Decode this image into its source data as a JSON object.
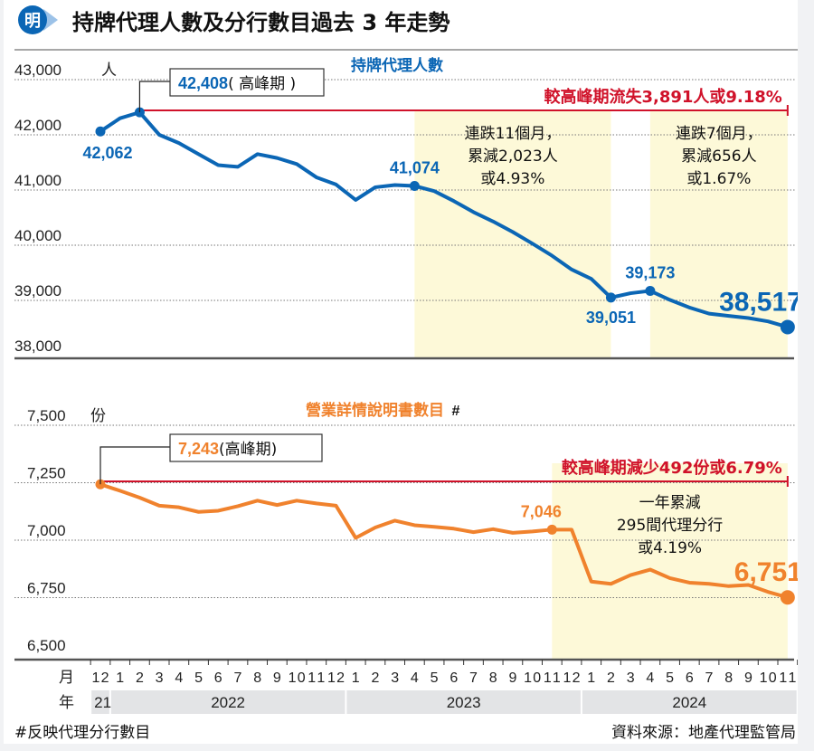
{
  "header": {
    "logo_char": "明",
    "title": "持牌代理人數及分行數目過去 3 年走勢"
  },
  "colors": {
    "agents": "#0b66b5",
    "branches": "#f0822d",
    "peak_line": "#d0122a",
    "highlight": "#fdf9d8",
    "year_band": "#e3e4e6"
  },
  "chart_data": [
    {
      "type": "line",
      "title": "持牌代理人數",
      "unit": "人",
      "ylim": [
        38000,
        43000
      ],
      "yticks": [
        38000,
        39000,
        40000,
        41000,
        42000,
        43000
      ],
      "ytick_labels": [
        "38,000",
        "39,000",
        "40,000",
        "41,000",
        "42,000",
        "43,000"
      ],
      "grid": true,
      "x": [
        "2021-12",
        "2022-01",
        "2022-02",
        "2022-03",
        "2022-04",
        "2022-05",
        "2022-06",
        "2022-07",
        "2022-08",
        "2022-09",
        "2022-10",
        "2022-11",
        "2022-12",
        "2023-01",
        "2023-02",
        "2023-03",
        "2023-04",
        "2023-05",
        "2023-06",
        "2023-07",
        "2023-08",
        "2023-09",
        "2023-10",
        "2023-11",
        "2023-12",
        "2024-01",
        "2024-02",
        "2024-03",
        "2024-04",
        "2024-05",
        "2024-06",
        "2024-07",
        "2024-08",
        "2024-09",
        "2024-10",
        "2024-11"
      ],
      "series": [
        {
          "name": "持牌代理人數",
          "values": [
            42062,
            42300,
            42408,
            42000,
            41850,
            41650,
            41450,
            41420,
            41650,
            41580,
            41470,
            41230,
            41100,
            40820,
            41050,
            41090,
            41074,
            40980,
            40800,
            40600,
            40430,
            40240,
            40030,
            39810,
            39560,
            39390,
            39051,
            39130,
            39173,
            39010,
            38870,
            38760,
            38720,
            38680,
            38620,
            38517
          ]
        }
      ],
      "labeled_points": [
        {
          "index": 0,
          "label": "42,062",
          "position": "below"
        },
        {
          "index": 2,
          "label": "42,408",
          "callout_suffix": "( 高峰期 )",
          "position": "callout"
        },
        {
          "index": 16,
          "label": "41,074",
          "position": "above"
        },
        {
          "index": 26,
          "label": "39,051",
          "position": "below"
        },
        {
          "index": 28,
          "label": "39,173",
          "position": "above"
        },
        {
          "index": 35,
          "label": "38,517",
          "position": "above-large"
        }
      ],
      "peak_annotation": "較高峰期流失3,891人或9.18%",
      "highlights": [
        {
          "from_index": 16,
          "to_index": 26,
          "lines": [
            "連跌11個月，",
            "累減2,023人",
            "或4.93%"
          ]
        },
        {
          "from_index": 28,
          "to_index": 35,
          "lines": [
            "連跌7個月，",
            "累減656人",
            "或1.67%"
          ]
        }
      ]
    },
    {
      "type": "line",
      "title": "營業詳情說明書數目",
      "title_mark": "#",
      "unit": "份",
      "ylim": [
        6500,
        7500
      ],
      "yticks": [
        6500,
        6750,
        7000,
        7250,
        7500
      ],
      "ytick_labels": [
        "6,500",
        "6,750",
        "7,000",
        "7,250",
        "7,500"
      ],
      "grid": true,
      "x": [
        "2021-12",
        "2022-01",
        "2022-02",
        "2022-03",
        "2022-04",
        "2022-05",
        "2022-06",
        "2022-07",
        "2022-08",
        "2022-09",
        "2022-10",
        "2022-11",
        "2022-12",
        "2023-01",
        "2023-02",
        "2023-03",
        "2023-04",
        "2023-05",
        "2023-06",
        "2023-07",
        "2023-08",
        "2023-09",
        "2023-10",
        "2023-11",
        "2023-12",
        "2024-01",
        "2024-02",
        "2024-03",
        "2024-04",
        "2024-05",
        "2024-06",
        "2024-07",
        "2024-08",
        "2024-09",
        "2024-10",
        "2024-11"
      ],
      "series": [
        {
          "name": "營業詳情說明書數目",
          "values": [
            7243,
            7215,
            7185,
            7150,
            7143,
            7123,
            7128,
            7148,
            7172,
            7153,
            7172,
            7160,
            7150,
            7010,
            7055,
            7085,
            7065,
            7058,
            7050,
            7035,
            7048,
            7032,
            7038,
            7046,
            7046,
            6820,
            6810,
            6848,
            6872,
            6835,
            6815,
            6810,
            6800,
            6805,
            6775,
            6751
          ]
        }
      ],
      "labeled_points": [
        {
          "index": 0,
          "label": "7,243",
          "callout_suffix": "(高峰期)",
          "position": "callout"
        },
        {
          "index": 23,
          "label": "7,046",
          "position": "above"
        },
        {
          "index": 35,
          "label": "6,751",
          "position": "above-large"
        }
      ],
      "peak_annotation": "較高峰期減少492份或6.79%",
      "highlights": [
        {
          "from_index": 23,
          "to_index": 35,
          "lines": [
            "一年累減",
            "295間代理分行",
            "或4.19%"
          ]
        }
      ]
    }
  ],
  "x_axis": {
    "month_label": "月",
    "year_label": "年",
    "months": [
      "12",
      "1",
      "2",
      "3",
      "4",
      "5",
      "6",
      "7",
      "8",
      "9",
      "10",
      "11",
      "12",
      "1",
      "2",
      "3",
      "4",
      "5",
      "6",
      "7",
      "8",
      "9",
      "10",
      "11",
      "12",
      "1",
      "2",
      "3",
      "4",
      "5",
      "6",
      "7",
      "8",
      "9",
      "10",
      "11"
    ],
    "years": [
      {
        "label": "21",
        "from_index": 0,
        "to_index": 0
      },
      {
        "label": "2022",
        "from_index": 1,
        "to_index": 12
      },
      {
        "label": "2023",
        "from_index": 13,
        "to_index": 24
      },
      {
        "label": "2024",
        "from_index": 25,
        "to_index": 35
      }
    ]
  },
  "footer": {
    "note": "#反映代理分行數目",
    "source": "資料來源：地產代理監管局"
  }
}
